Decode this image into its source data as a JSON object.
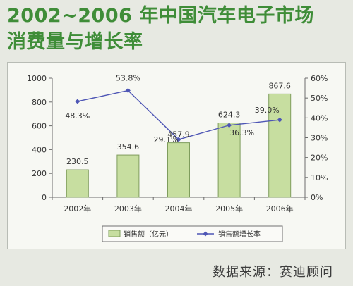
{
  "title": {
    "line1": "2002~2006 年中国汽车电子市场",
    "line2": "消费量与增长率"
  },
  "source": "数据来源：赛迪顾问",
  "colors": {
    "title": "#3f8d38",
    "bar_fill": "#c7dea0",
    "bar_stroke": "#7f9d5d",
    "line": "#4e56b5",
    "axis": "#6c6c6c",
    "text": "#333333"
  },
  "chart_data": {
    "type": "bar-line",
    "categories": [
      "2002年",
      "2003年",
      "2004年",
      "2005年",
      "2006年"
    ],
    "series": [
      {
        "name": "销售额（亿元）",
        "type": "bar",
        "axis": "left",
        "values": [
          230.5,
          354.6,
          457.9,
          624.3,
          867.6
        ],
        "labels": [
          "230.5",
          "354.6",
          "457.9",
          "624.3",
          "867.6"
        ]
      },
      {
        "name": "销售额增长率",
        "type": "line",
        "axis": "right",
        "values": [
          48.3,
          53.8,
          29.1,
          36.3,
          39.0
        ],
        "labels": [
          "48.3%",
          "53.8%",
          "29.1%",
          "36.3%",
          "39.0%"
        ]
      }
    ],
    "y_left": {
      "min": 0,
      "max": 1000,
      "ticks": [
        0,
        200,
        400,
        600,
        800,
        1000
      ],
      "tick_labels": [
        "0",
        "200",
        "400",
        "600",
        "800",
        "1000"
      ]
    },
    "y_right": {
      "min": 0,
      "max": 60,
      "ticks": [
        0,
        10,
        20,
        30,
        40,
        50,
        60
      ],
      "tick_labels": [
        "0%",
        "10%",
        "20%",
        "30%",
        "40%",
        "50%",
        "60%"
      ]
    },
    "grid": false,
    "legend": "bottom"
  }
}
